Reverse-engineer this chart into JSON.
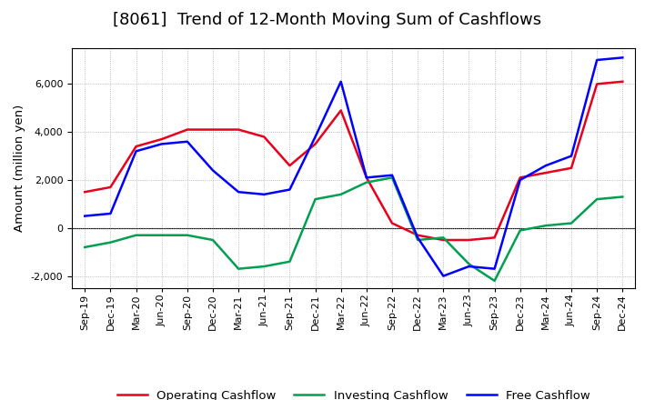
{
  "title": "[8061]  Trend of 12-Month Moving Sum of Cashflows",
  "ylabel": "Amount (million yen)",
  "x_labels": [
    "Sep-19",
    "Dec-19",
    "Mar-20",
    "Jun-20",
    "Sep-20",
    "Dec-20",
    "Mar-21",
    "Jun-21",
    "Sep-21",
    "Dec-21",
    "Mar-22",
    "Jun-22",
    "Sep-22",
    "Dec-22",
    "Mar-23",
    "Jun-23",
    "Sep-23",
    "Dec-23",
    "Mar-24",
    "Jun-24",
    "Sep-24",
    "Dec-24"
  ],
  "operating_data": [
    1500,
    1700,
    3400,
    3700,
    4100,
    4100,
    4100,
    3800,
    2600,
    3500,
    4900,
    2100,
    200,
    -300,
    -500,
    -500,
    -400,
    2100,
    2300,
    2500,
    6000,
    6100
  ],
  "investing_data": [
    -800,
    -600,
    -300,
    -300,
    -300,
    -500,
    -1700,
    -1600,
    -1400,
    1200,
    1400,
    1900,
    2100,
    -500,
    -400,
    -1500,
    -2200,
    -100,
    100,
    200,
    1200,
    1300
  ],
  "free_data": [
    500,
    600,
    3200,
    3500,
    3600,
    2400,
    1500,
    1400,
    1600,
    3800,
    6100,
    2100,
    2200,
    -400,
    -2000,
    -1600,
    -1700,
    2000,
    2600,
    3000,
    7000,
    7100
  ],
  "color_operating": "#e8001c",
  "color_investing": "#00a050",
  "color_free": "#0000ff",
  "ylim": [
    -2500,
    7500
  ],
  "yticks": [
    -2000,
    0,
    2000,
    4000,
    6000
  ],
  "background_color": "#ffffff",
  "grid_color": "#aaaaaa",
  "title_fontsize": 13,
  "label_fontsize": 9.5,
  "tick_fontsize": 8,
  "legend_fontsize": 9.5,
  "linewidth": 1.8
}
